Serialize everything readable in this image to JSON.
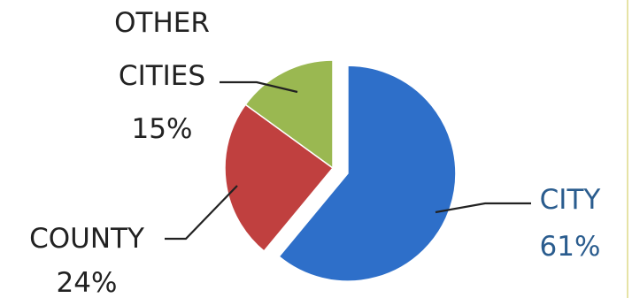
{
  "chart_data": {
    "type": "pie",
    "slices": [
      {
        "label": "CITY",
        "percent_label": "61%",
        "value": 61,
        "color": "#2e6fc9"
      },
      {
        "label": "COUNTY",
        "percent_label": "24%",
        "value": 24,
        "color": "#c0403f"
      },
      {
        "label": "OTHER CITIES",
        "label_lines": [
          "OTHER",
          "CITIES"
        ],
        "percent_label": "15%",
        "value": 15,
        "color": "#9ab851"
      }
    ],
    "exploded": "CITY",
    "legend": "none"
  }
}
